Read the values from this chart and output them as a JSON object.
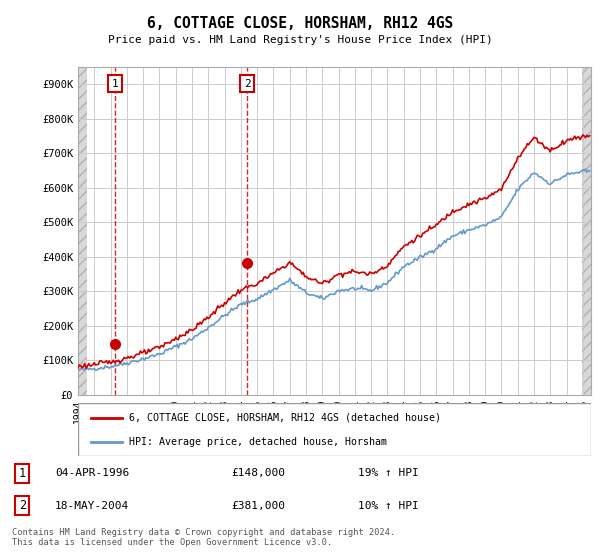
{
  "title": "6, COTTAGE CLOSE, HORSHAM, RH12 4GS",
  "subtitle": "Price paid vs. HM Land Registry's House Price Index (HPI)",
  "ylabel_ticks": [
    "£0",
    "£100K",
    "£200K",
    "£300K",
    "£400K",
    "£500K",
    "£600K",
    "£700K",
    "£800K",
    "£900K"
  ],
  "ytick_values": [
    0,
    100000,
    200000,
    300000,
    400000,
    500000,
    600000,
    700000,
    800000,
    900000
  ],
  "ylim": [
    0,
    950000
  ],
  "xlim_start": 1994.0,
  "xlim_end": 2025.5,
  "sale1_year": 1996.27,
  "sale1_price": 148000,
  "sale2_year": 2004.38,
  "sale2_price": 381000,
  "sale1_label": "1",
  "sale2_label": "2",
  "legend_line1": "6, COTTAGE CLOSE, HORSHAM, RH12 4GS (detached house)",
  "legend_line2": "HPI: Average price, detached house, Horsham",
  "table_row1": [
    "1",
    "04-APR-1996",
    "£148,000",
    "19% ↑ HPI"
  ],
  "table_row2": [
    "2",
    "18-MAY-2004",
    "£381,000",
    "10% ↑ HPI"
  ],
  "footnote": "Contains HM Land Registry data © Crown copyright and database right 2024.\nThis data is licensed under the Open Government Licence v3.0.",
  "hpi_color": "#6699cc",
  "sale_color": "#cc0000",
  "grid_color": "#cccccc",
  "hpi_years": [
    1994,
    1995,
    1996,
    1997,
    1998,
    1999,
    2000,
    2001,
    2002,
    2003,
    2004,
    2005,
    2006,
    2007,
    2008,
    2009,
    2010,
    2011,
    2012,
    2013,
    2014,
    2015,
    2016,
    2017,
    2018,
    2019,
    2020,
    2021,
    2022,
    2023,
    2024,
    2025
  ],
  "hpi_values": [
    72000,
    76000,
    82000,
    92000,
    104000,
    118000,
    140000,
    162000,
    195000,
    230000,
    262000,
    278000,
    305000,
    332000,
    296000,
    278000,
    302000,
    308000,
    302000,
    325000,
    372000,
    398000,
    425000,
    460000,
    478000,
    492000,
    515000,
    595000,
    645000,
    612000,
    638000,
    648000
  ],
  "sale_years": [
    1994,
    1995,
    1996,
    1997,
    1998,
    1999,
    2000,
    2001,
    2002,
    2003,
    2004,
    2005,
    2006,
    2007,
    2008,
    2009,
    2010,
    2011,
    2012,
    2013,
    2014,
    2015,
    2016,
    2017,
    2018,
    2019,
    2020,
    2021,
    2022,
    2023,
    2024,
    2025
  ],
  "sale_values": [
    82000,
    88000,
    95000,
    107000,
    121000,
    137000,
    163000,
    188000,
    225000,
    266000,
    304000,
    322000,
    352000,
    384000,
    343000,
    322000,
    350000,
    357000,
    350000,
    376000,
    430000,
    461000,
    492000,
    532000,
    553000,
    569000,
    596000,
    688000,
    746000,
    708000,
    738000,
    750000
  ]
}
